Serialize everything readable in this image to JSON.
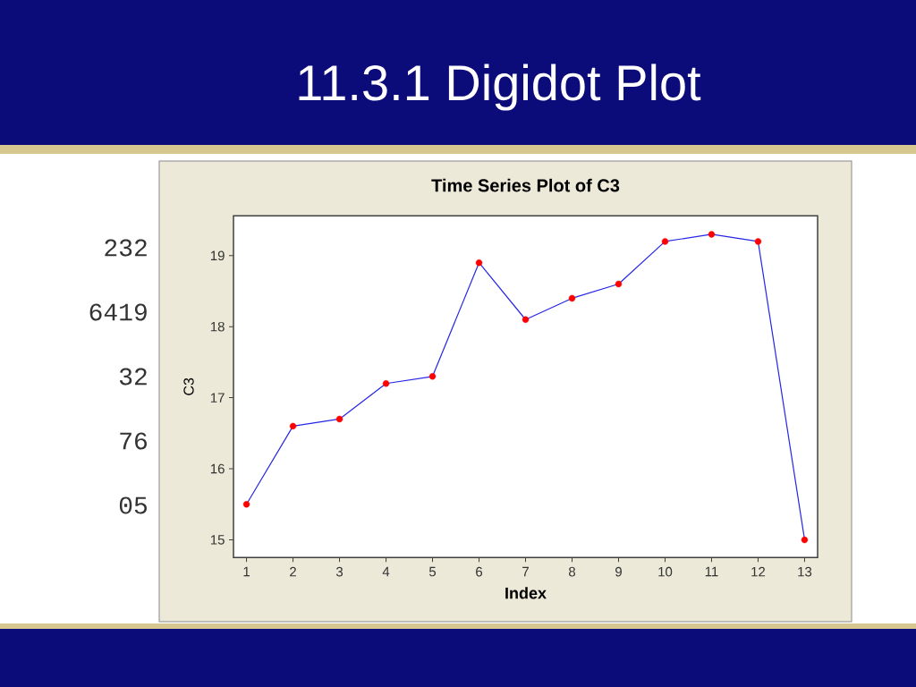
{
  "chart_data": {
    "type": "line",
    "title": "11.3.1 Digidot Plot",
    "subtitle": "Time Series Plot of C3",
    "xlabel": "Index",
    "ylabel": "C3",
    "x": [
      1,
      2,
      3,
      4,
      5,
      6,
      7,
      8,
      9,
      10,
      11,
      12,
      13
    ],
    "series": [
      {
        "type": "line",
        "color": "#2626e6",
        "marker": "none",
        "values": [
          15.5,
          16.6,
          16.7,
          17.2,
          17.3,
          18.9,
          18.1,
          18.4,
          18.6,
          19.2,
          19.3,
          19.2,
          15.0
        ]
      },
      {
        "type": "scatter",
        "color": "#ff0000",
        "marker": "circle",
        "values": [
          15.5,
          16.6,
          16.7,
          17.2,
          17.3,
          18.9,
          18.1,
          18.4,
          18.6,
          19.2,
          19.3,
          19.2,
          15.0
        ]
      }
    ],
    "xlim": [
      0.72,
      13.28
    ],
    "ylim": [
      14.75,
      19.56
    ],
    "xticks": [
      1,
      2,
      3,
      4,
      5,
      6,
      7,
      8,
      9,
      10,
      11,
      12,
      13
    ],
    "yticks": [
      15,
      16,
      17,
      18,
      19
    ],
    "annotations": [
      "232",
      "6419",
      "32",
      "76",
      "05"
    ]
  }
}
